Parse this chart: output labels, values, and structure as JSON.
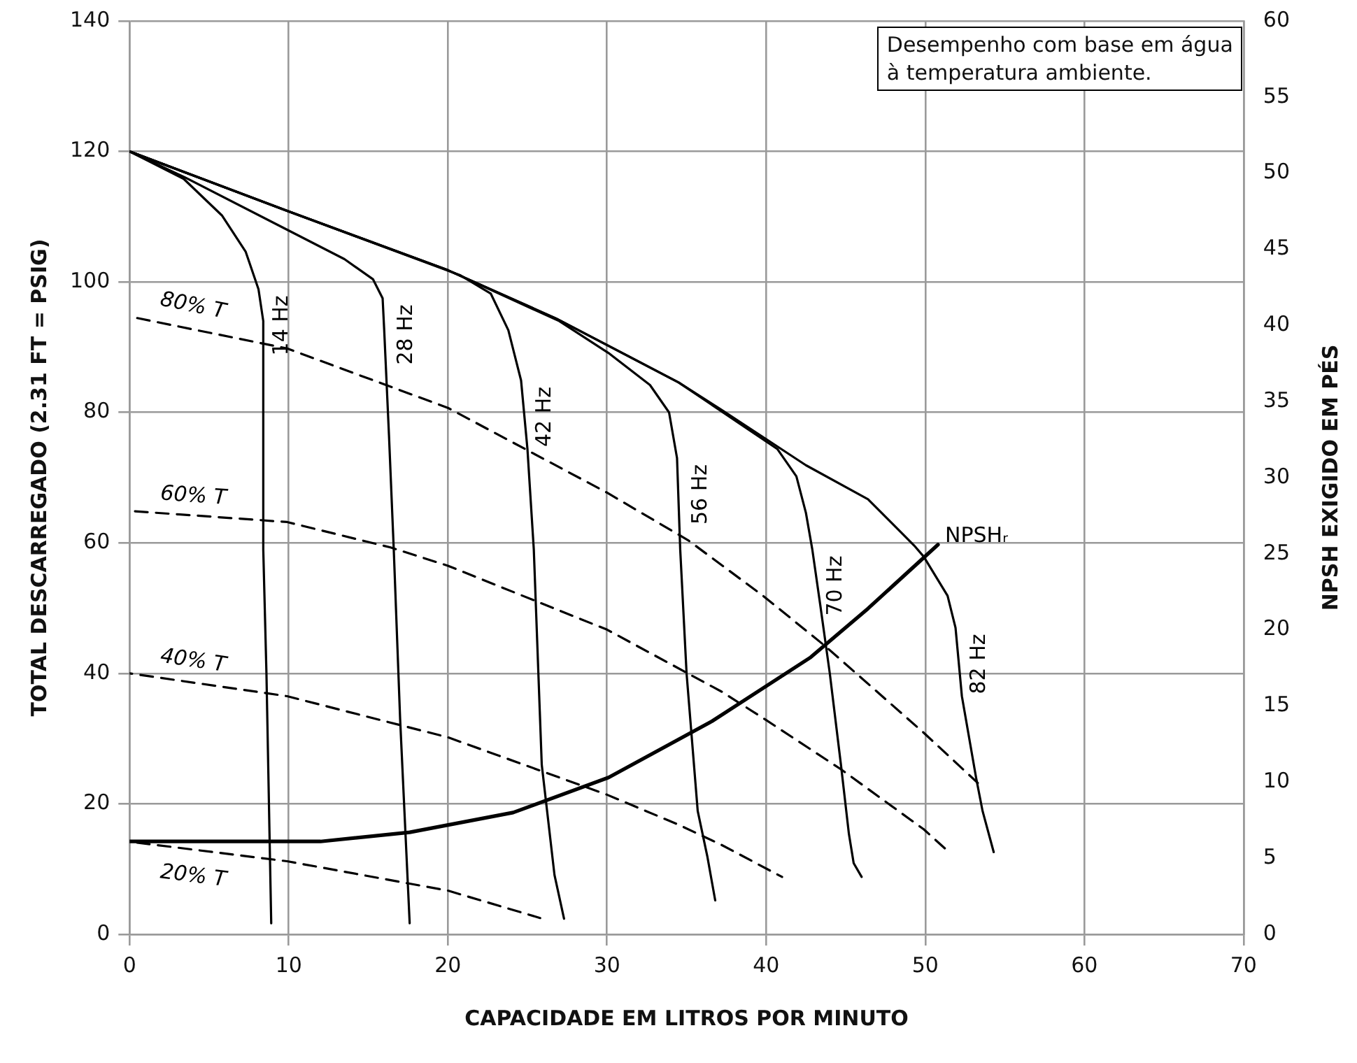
{
  "chart_data": {
    "type": "line",
    "xlabel": "CAPACIDADE EM LITROS POR MINUTO",
    "ylabel": "TOTAL DESCARREGADO (2.31 FT = PSIG)",
    "y2label": "NPSH EXIGIDO EM PÉS",
    "xlim": [
      0,
      70
    ],
    "xticks": [
      0,
      10,
      20,
      30,
      40,
      50,
      60,
      70
    ],
    "ylim": [
      0,
      140
    ],
    "yticks": [
      0,
      20,
      40,
      60,
      80,
      100,
      120,
      140
    ],
    "y2lim": [
      0,
      60
    ],
    "y2ticks": [
      0,
      5,
      10,
      15,
      20,
      25,
      30,
      35,
      40,
      45,
      50,
      55,
      60
    ],
    "grid": true,
    "legend": false,
    "marker": "none",
    "annotations": [
      "Desempenho com base em água\nà temperatura ambiente."
    ],
    "series": [
      {
        "name": "14 Hz",
        "color": "#000000",
        "line_style": "solid",
        "x": [
          0,
          3.4,
          5.8,
          7.3,
          8.1,
          8.4,
          8.4,
          8.6,
          8.9
        ],
        "values": [
          120,
          115.8,
          110.2,
          104.6,
          98.9,
          94,
          59,
          40,
          1.7
        ]
      },
      {
        "name": "28 Hz",
        "color": "#000000",
        "line_style": "solid",
        "x": [
          0,
          3.5,
          9.9,
          13.5,
          15.3,
          15.9,
          16,
          16.3,
          16.6,
          17,
          17.6
        ],
        "values": [
          120,
          116,
          108,
          103.5,
          100.4,
          97.5,
          92.6,
          76.5,
          59,
          33,
          1.7
        ]
      },
      {
        "name": "42 Hz",
        "color": "#000000",
        "line_style": "solid",
        "x": [
          0,
          9.9,
          20.8,
          22.7,
          23.8,
          24.6,
          25,
          25.4,
          25.9,
          26.7,
          27.3
        ],
        "values": [
          120,
          110.9,
          101,
          98.2,
          92.6,
          84.9,
          74.4,
          59,
          26,
          9.1,
          2.4
        ]
      },
      {
        "name": "56 Hz",
        "color": "#000000",
        "line_style": "solid",
        "x": [
          0,
          9.9,
          20,
          27,
          30.1,
          32.7,
          33.9,
          34.4,
          34.6,
          35,
          35.7,
          36.3,
          36.8
        ],
        "values": [
          120,
          110.9,
          101.8,
          94,
          89.1,
          84.2,
          80,
          73,
          59,
          40,
          18.9,
          12,
          5.2
        ]
      },
      {
        "name": "70 Hz",
        "color": "#000000",
        "line_style": "solid",
        "x": [
          0,
          9.9,
          20,
          26.8,
          34.5,
          39,
          40.7,
          41.9,
          42.5,
          42.9,
          43.4,
          44,
          44.7,
          45.2,
          45.5,
          46
        ],
        "values": [
          120,
          110.9,
          101.8,
          94.4,
          84.6,
          77.2,
          74.4,
          70.2,
          64.6,
          59,
          50.5,
          40,
          26,
          15.4,
          10.9,
          8.8
        ]
      },
      {
        "name": "82 Hz",
        "color": "#000000",
        "line_style": "solid",
        "x": [
          0,
          9.9,
          20,
          26.8,
          34.5,
          37.2,
          42.5,
          46.4,
          49.3,
          49.9,
          51.4,
          51.9,
          52.3,
          53.2,
          53.6,
          54.3
        ],
        "values": [
          120,
          110.9,
          101.8,
          94.4,
          84.6,
          80.4,
          71.9,
          66.7,
          59.6,
          57.9,
          51.9,
          47,
          36.5,
          23.9,
          18.9,
          12.6
        ]
      },
      {
        "name": "80% T",
        "color": "#000000",
        "line_style": "dashed",
        "x": [
          0,
          9.9,
          20,
          30,
          35.1,
          39.8,
          43.7,
          49.9,
          53.3
        ],
        "values": [
          94.7,
          89.8,
          80.7,
          67.7,
          60.4,
          51.9,
          44.2,
          30.9,
          23.2
        ]
      },
      {
        "name": "60% T",
        "color": "#000000",
        "line_style": "dashed",
        "x": [
          0,
          9.9,
          16.4,
          20,
          30,
          37.2,
          39.9,
          44.7,
          49.9,
          51.4
        ],
        "values": [
          64.9,
          63.2,
          59.3,
          56.5,
          46.7,
          37.2,
          33,
          25.3,
          16.1,
          12.8
        ]
      },
      {
        "name": "40% T",
        "color": "#000000",
        "line_style": "dashed",
        "x": [
          0,
          9.9,
          20,
          30,
          34.5,
          37.2,
          41
        ],
        "values": [
          40,
          36.5,
          30.2,
          21.4,
          16.8,
          13.7,
          8.8
        ]
      },
      {
        "name": "20% T",
        "color": "#000000",
        "line_style": "dashed",
        "x": [
          0,
          9.9,
          20,
          25.8
        ],
        "values": [
          14.2,
          11.2,
          6.7,
          2.5
        ]
      },
      {
        "name": "NPSHᵣ",
        "color": "#000000",
        "line_style": "solid",
        "axis": "y2",
        "x": [
          0,
          12,
          17.6,
          24.1,
          30.1,
          36.6,
          42.8,
          46.4,
          50.8
        ],
        "values": [
          6.1,
          6.1,
          6.7,
          8,
          10.3,
          14,
          18.2,
          21.4,
          25.6
        ]
      }
    ]
  }
}
